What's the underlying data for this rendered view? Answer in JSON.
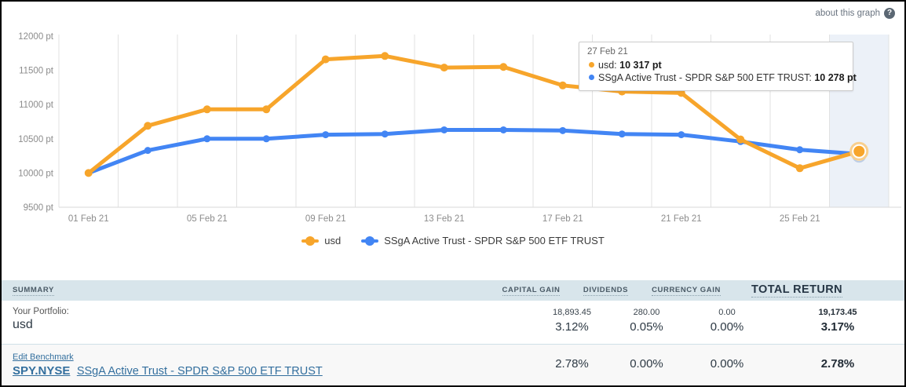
{
  "header": {
    "about_label": "about this graph",
    "help_glyph": "?"
  },
  "chart_data": {
    "type": "line",
    "x": [
      "01 Feb 21",
      "03 Feb 21",
      "05 Feb 21",
      "07 Feb 21",
      "09 Feb 21",
      "11 Feb 21",
      "13 Feb 21",
      "15 Feb 21",
      "17 Feb 21",
      "19 Feb 21",
      "21 Feb 21",
      "23 Feb 21",
      "25 Feb 21",
      "27 Feb 21"
    ],
    "x_tick_labels": [
      "01 Feb 21",
      "05 Feb 21",
      "09 Feb 21",
      "13 Feb 21",
      "17 Feb 21",
      "21 Feb 21",
      "25 Feb 21"
    ],
    "y_ticks": [
      12000,
      11500,
      11000,
      10500,
      10000,
      9500
    ],
    "y_unit": "pt",
    "ylim": [
      9500,
      12000
    ],
    "grid": "vertical-only",
    "legend_position": "bottom-center",
    "highlighted_index": 13,
    "series": [
      {
        "name": "usd",
        "color": "#F7A52B",
        "values": [
          10000,
          10690,
          10930,
          10930,
          11660,
          11710,
          11540,
          11550,
          11280,
          11190,
          11170,
          10490,
          10070,
          10317
        ]
      },
      {
        "name": "SSgA Active Trust - SPDR S&P 500 ETF TRUST",
        "color": "#4285F4",
        "values": [
          10000,
          10330,
          10500,
          10500,
          10560,
          10570,
          10630,
          10630,
          10620,
          10570,
          10560,
          10460,
          10340,
          10278
        ]
      }
    ],
    "colors": {
      "highlight_band": "#ECF1F8",
      "gridline": "#E2E2E2",
      "axis_text": "#8C8C8C"
    }
  },
  "tooltip": {
    "date": "27 Feb 21",
    "items": [
      {
        "label": "usd:",
        "value": "10 317 pt",
        "color": "#F7A52B"
      },
      {
        "label": "SSgA Active Trust - SPDR S&P 500 ETF TRUST:",
        "value": "10 278 pt",
        "color": "#4285F4"
      }
    ]
  },
  "legend": {
    "items": [
      {
        "label": "usd",
        "color": "#F7A52B"
      },
      {
        "label": "SSgA Active Trust - SPDR S&P 500 ETF TRUST",
        "color": "#4285F4"
      }
    ]
  },
  "summary_table": {
    "title": "SUMMARY",
    "columns": [
      "CAPITAL GAIN",
      "DIVIDENDS",
      "CURRENCY GAIN",
      "TOTAL RETURN"
    ],
    "portfolio_row": {
      "label_top": "Your Portfolio:",
      "label_main": "usd",
      "amounts": [
        "18,893.45",
        "280.00",
        "0.00",
        "19,173.45"
      ],
      "percents": [
        "3.12%",
        "0.05%",
        "0.00%",
        "3.17%"
      ]
    },
    "benchmark_row": {
      "edit_link": "Edit Benchmark",
      "ticker": "SPY.NYSE",
      "name": "SSgA Active Trust - SPDR S&P 500 ETF TRUST",
      "percents": [
        "2.78%",
        "0.00%",
        "0.00%",
        "2.78%"
      ]
    }
  }
}
